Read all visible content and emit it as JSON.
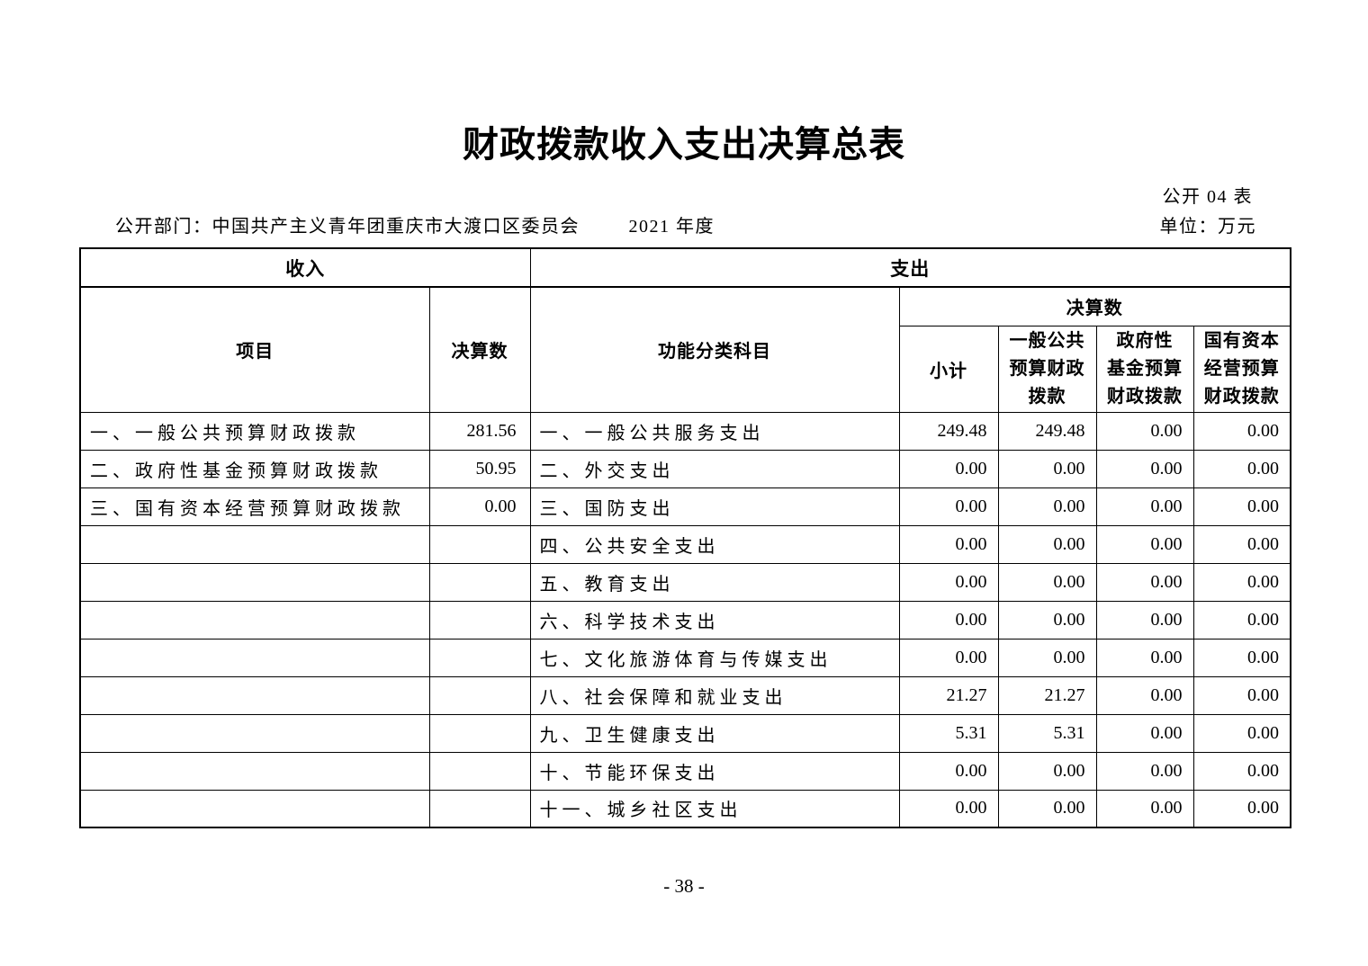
{
  "page": {
    "title": "财政拨款收入支出决算总表",
    "table_code": "公开 04 表",
    "department_label": "公开部门：中国共产主义青年团重庆市大渡口区委员会",
    "year_label": "2021 年度",
    "unit_label": "单位：万元",
    "page_number": "- 38 -"
  },
  "table": {
    "income_header": "收入",
    "expense_header": "支出",
    "columns": {
      "item": "项目",
      "income_amount": "决算数",
      "subject": "功能分类科目",
      "amount_group": "决算数",
      "subtotal": "小计",
      "general_budget": "一般公共\n预算财政\n拨款",
      "gov_fund": "政府性\n基金预算\n财政拨款",
      "state_capital": "国有资本\n经营预算\n财政拨款"
    },
    "income_rows": [
      {
        "item": "一、一般公共预算财政拨款",
        "amount": "281.56"
      },
      {
        "item": "二、政府性基金预算财政拨款",
        "amount": "50.95"
      },
      {
        "item": "三、国有资本经营预算财政拨款",
        "amount": "0.00"
      }
    ],
    "expense_rows": [
      {
        "subject": "一、一般公共服务支出",
        "subtotal": "249.48",
        "general": "249.48",
        "gov_fund": "0.00",
        "state_capital": "0.00"
      },
      {
        "subject": "二、外交支出",
        "subtotal": "0.00",
        "general": "0.00",
        "gov_fund": "0.00",
        "state_capital": "0.00"
      },
      {
        "subject": "三、国防支出",
        "subtotal": "0.00",
        "general": "0.00",
        "gov_fund": "0.00",
        "state_capital": "0.00"
      },
      {
        "subject": "四、公共安全支出",
        "subtotal": "0.00",
        "general": "0.00",
        "gov_fund": "0.00",
        "state_capital": "0.00"
      },
      {
        "subject": "五、教育支出",
        "subtotal": "0.00",
        "general": "0.00",
        "gov_fund": "0.00",
        "state_capital": "0.00"
      },
      {
        "subject": "六、科学技术支出",
        "subtotal": "0.00",
        "general": "0.00",
        "gov_fund": "0.00",
        "state_capital": "0.00"
      },
      {
        "subject": "七、文化旅游体育与传媒支出",
        "subtotal": "0.00",
        "general": "0.00",
        "gov_fund": "0.00",
        "state_capital": "0.00"
      },
      {
        "subject": "八、社会保障和就业支出",
        "subtotal": "21.27",
        "general": "21.27",
        "gov_fund": "0.00",
        "state_capital": "0.00"
      },
      {
        "subject": "九、卫生健康支出",
        "subtotal": "5.31",
        "general": "5.31",
        "gov_fund": "0.00",
        "state_capital": "0.00"
      },
      {
        "subject": "十、节能环保支出",
        "subtotal": "0.00",
        "general": "0.00",
        "gov_fund": "0.00",
        "state_capital": "0.00"
      },
      {
        "subject": "十一、城乡社区支出",
        "subtotal": "0.00",
        "general": "0.00",
        "gov_fund": "0.00",
        "state_capital": "0.00"
      }
    ]
  }
}
